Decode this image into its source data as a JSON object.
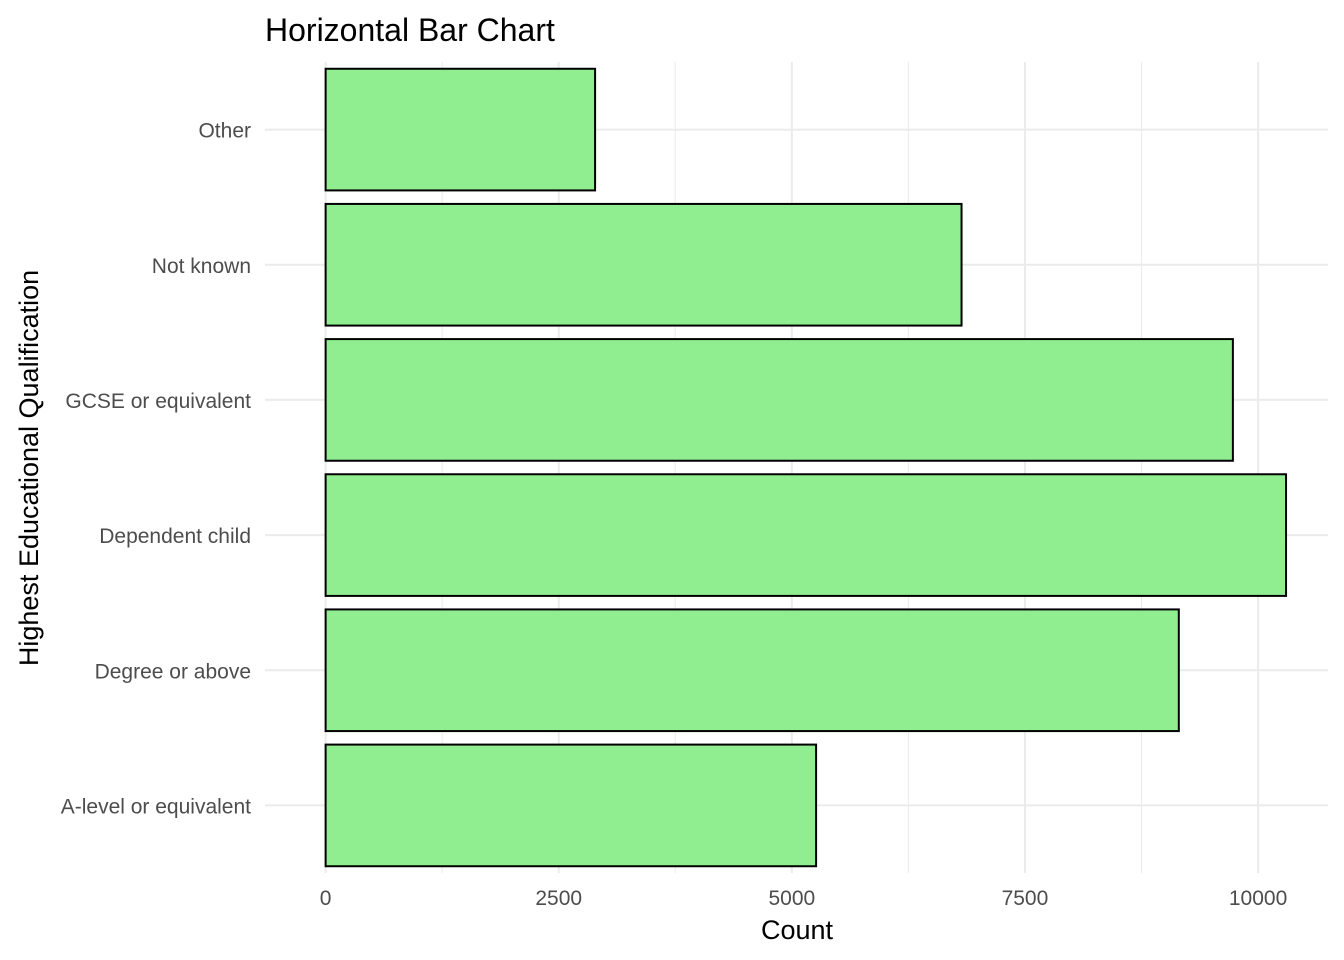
{
  "chart_data": {
    "type": "bar",
    "orientation": "horizontal",
    "title": "Horizontal Bar Chart",
    "xlabel": "Count",
    "ylabel": "Highest Educational Qualification",
    "categories": [
      "A-level or equivalent",
      "Degree or above",
      "Dependent child",
      "GCSE or equivalent",
      "Not known",
      "Other"
    ],
    "values": [
      5260,
      9150,
      10300,
      9730,
      6820,
      2890
    ],
    "xlim": [
      -650,
      10750
    ],
    "xticks": [
      0,
      2500,
      5000,
      7500,
      10000
    ],
    "xtick_labels": [
      "0",
      "2500",
      "5000",
      "7500",
      "10000"
    ],
    "grid": true,
    "legend": "none",
    "colors": {
      "bar_fill": "#90ee90",
      "bar_outline": "#000000",
      "grid": "#ebebeb",
      "tick_text": "#4d4d4d"
    }
  }
}
